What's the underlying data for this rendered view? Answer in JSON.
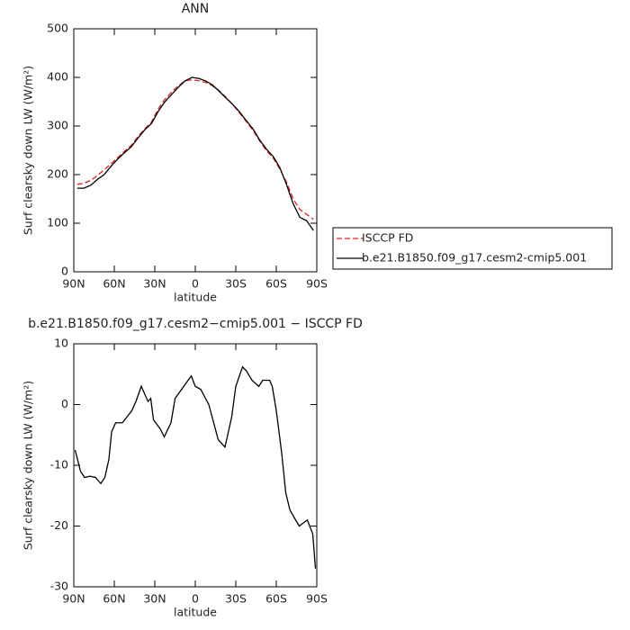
{
  "chart_data": [
    {
      "type": "line",
      "title": "ANN",
      "xlabel": "latitude",
      "ylabel": "Surf clearsky down LW (W/m²)",
      "x": [
        87.5,
        82.5,
        77.5,
        72.5,
        67.5,
        62.5,
        57.5,
        52.5,
        47.5,
        42.5,
        37.5,
        32.5,
        27.5,
        22.5,
        17.5,
        12.5,
        7.5,
        2.5,
        -2.5,
        -7.5,
        -12.5,
        -17.5,
        -22.5,
        -27.5,
        -32.5,
        -37.5,
        -42.5,
        -47.5,
        -52.5,
        -57.5,
        -62.5,
        -67.5,
        -72.5,
        -77.5,
        -82.5,
        -87.5
      ],
      "series": [
        {
          "name": "ISCCP FD",
          "color": "#e02020",
          "dash": "dashed",
          "values": [
            180,
            182,
            188,
            198,
            210,
            222,
            235,
            248,
            260,
            278,
            294,
            308,
            335,
            355,
            370,
            383,
            393,
            395,
            393,
            390,
            383,
            373,
            360,
            345,
            328,
            310,
            292,
            270,
            250,
            235,
            212,
            185,
            150,
            128,
            118,
            108
          ]
        },
        {
          "name": "b.e21.B1850.f09_g17.cesm2-cmip5.001",
          "color": "#000000",
          "dash": "solid",
          "values": [
            172,
            172,
            178,
            190,
            200,
            217,
            232,
            245,
            257,
            275,
            292,
            305,
            330,
            350,
            365,
            380,
            393,
            400,
            398,
            393,
            385,
            372,
            358,
            345,
            330,
            312,
            295,
            272,
            253,
            238,
            215,
            180,
            140,
            112,
            105,
            85
          ]
        }
      ],
      "xlim": [
        90,
        -90
      ],
      "xticks": [
        {
          "value": 90,
          "label": "90N"
        },
        {
          "value": 60,
          "label": "60N"
        },
        {
          "value": 30,
          "label": "30N"
        },
        0,
        {
          "value": -30,
          "label": "30S"
        },
        {
          "value": -60,
          "label": "60S"
        },
        {
          "value": -90,
          "label": "90S"
        }
      ],
      "ylim": [
        0,
        500
      ],
      "yticks": [
        0,
        100,
        200,
        300,
        400,
        500
      ],
      "legend": "right"
    },
    {
      "type": "line",
      "title": "b.e21.B1850.f09_g17.cesm2−cmip5.001 − ISCCP FD",
      "xlabel": "latitude",
      "ylabel": "Surf clearsky down LW (W/m²)",
      "x": [
        89,
        85,
        82,
        78,
        74,
        70,
        67,
        64,
        62,
        59,
        54,
        47,
        44,
        40,
        37,
        35,
        33,
        31,
        26,
        23,
        18,
        15,
        3,
        0,
        -4,
        -10,
        -17,
        -22,
        -27,
        -30,
        -35,
        -38,
        -42,
        -47,
        -50,
        -55,
        -57,
        -60,
        -64,
        -67,
        -70,
        -73,
        -77,
        -83,
        -87,
        -89
      ],
      "series": [
        {
          "color": "#000000",
          "dash": "solid",
          "values": [
            -7.5,
            -11,
            -12,
            -11.8,
            -12,
            -13,
            -12,
            -9,
            -4.5,
            -3,
            -3,
            -1,
            0.5,
            3,
            1.5,
            0.5,
            1,
            -2.5,
            -4,
            -5.3,
            -3,
            1,
            4.7,
            3,
            2.5,
            0,
            -5.8,
            -7,
            -2,
            3,
            6.2,
            5.5,
            4,
            3,
            4,
            4,
            3,
            -1,
            -8,
            -14.5,
            -17.3,
            -18.5,
            -20,
            -19,
            -21.3,
            -27
          ]
        }
      ],
      "xlim": [
        90,
        -90
      ],
      "xticks": [
        {
          "value": 90,
          "label": "90N"
        },
        {
          "value": 60,
          "label": "60N"
        },
        {
          "value": 30,
          "label": "30N"
        },
        0,
        {
          "value": -30,
          "label": "30S"
        },
        {
          "value": -60,
          "label": "60S"
        },
        {
          "value": -90,
          "label": "90S"
        }
      ],
      "ylim": [
        -30,
        10
      ],
      "yticks": [
        -30,
        -20,
        -10,
        0,
        10
      ]
    }
  ]
}
